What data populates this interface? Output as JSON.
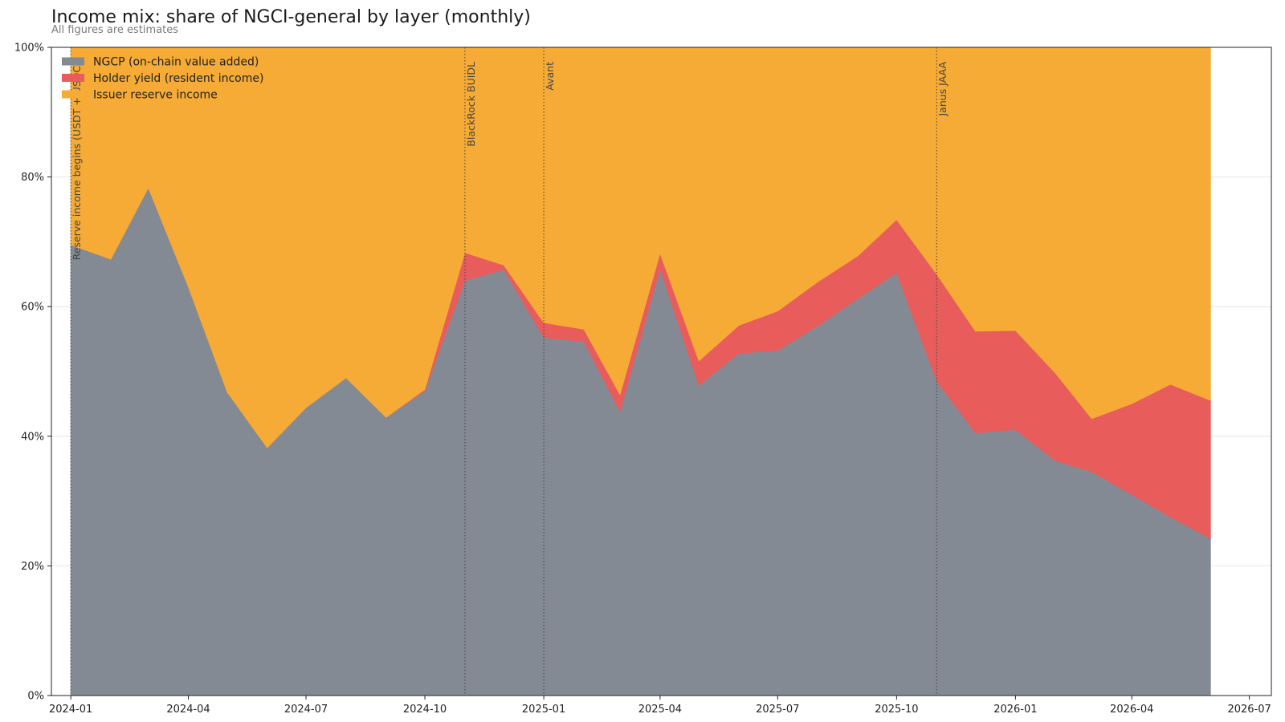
{
  "chart_data": {
    "type": "area",
    "stacked": true,
    "title": "Income mix: share of NGCI-general by layer (monthly)",
    "subtitle": "All figures are estimates",
    "xlabel": "",
    "ylabel": "",
    "x": [
      "2024-01",
      "2024-02",
      "2024-03",
      "2024-04",
      "2024-05",
      "2024-06",
      "2024-07",
      "2024-08",
      "2024-09",
      "2024-10",
      "2024-11",
      "2024-12",
      "2025-01",
      "2025-02",
      "2025-03",
      "2025-04",
      "2025-05",
      "2025-06",
      "2025-07",
      "2025-08",
      "2025-09",
      "2025-10",
      "2025-11",
      "2025-12",
      "2026-01",
      "2026-02",
      "2026-03",
      "2026-04",
      "2026-05",
      "2026-06"
    ],
    "series": [
      {
        "name": "NGCP (on-chain value added)",
        "color": "#848a94",
        "values": [
          69.5,
          67.3,
          78.3,
          63.0,
          46.8,
          38.2,
          44.4,
          49.0,
          42.9,
          47.0,
          64.0,
          65.7,
          55.2,
          54.6,
          43.8,
          65.8,
          47.8,
          52.8,
          53.2,
          57.0,
          61.2,
          65.2,
          48.5,
          40.5,
          41.0,
          36.2,
          34.5,
          31.0,
          27.5,
          24.2
        ]
      },
      {
        "name": "Holder yield (resident income)",
        "color": "#e85c5c",
        "values": [
          0,
          0,
          0,
          0,
          0,
          0,
          0,
          0,
          0,
          0.2,
          4.3,
          0.7,
          2.3,
          1.9,
          2.6,
          2.4,
          3.8,
          4.3,
          6.1,
          6.8,
          6.6,
          8.2,
          16.5,
          15.7,
          15.3,
          13.5,
          8.2,
          14.0,
          20.5,
          21.3
        ]
      },
      {
        "name": "Issuer reserve income",
        "color": "#f5ab35",
        "values": [
          30.5,
          32.7,
          21.7,
          37.0,
          53.2,
          61.8,
          55.6,
          51.0,
          57.1,
          52.8,
          31.7,
          33.6,
          42.5,
          43.5,
          53.6,
          31.8,
          48.4,
          42.9,
          40.7,
          36.2,
          32.2,
          26.6,
          35.0,
          43.8,
          43.7,
          50.3,
          57.3,
          55.0,
          52.0,
          54.5
        ]
      }
    ],
    "ylim": [
      0,
      100
    ],
    "y_ticks": [
      "0%",
      "20%",
      "40%",
      "60%",
      "80%",
      "100%"
    ],
    "x_ticks": [
      "2024-01",
      "2024-04",
      "2024-07",
      "2024-10",
      "2025-01",
      "2025-04",
      "2025-07",
      "2025-10",
      "2026-01",
      "2026-04",
      "2026-07"
    ],
    "xlim": [
      "2023-12-17",
      "2026-07-18"
    ],
    "events": [
      {
        "date": "2024-01-01",
        "label": "Reserve income begins (USDT + USDC)"
      },
      {
        "date": "2024-11-01",
        "label": "BlackRock BUIDL"
      },
      {
        "date": "2025-01-01",
        "label": "Avant"
      },
      {
        "date": "2025-11-01",
        "label": "Janus JAAA"
      }
    ],
    "grid": "y",
    "legend_position": "top-left"
  }
}
